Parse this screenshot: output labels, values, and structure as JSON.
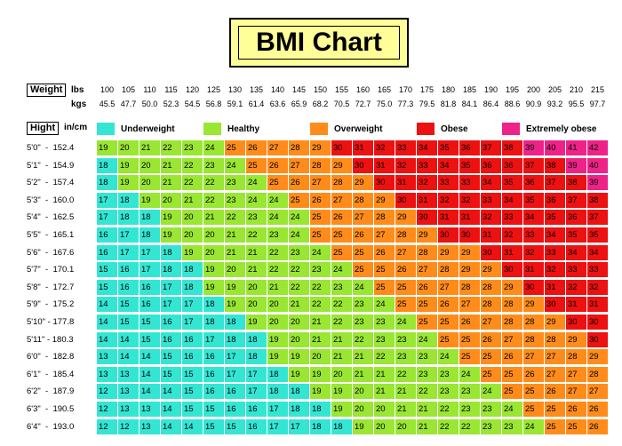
{
  "title": "BMI Chart",
  "header": {
    "weight_label": "Weight",
    "lbs_label": "lbs",
    "kgs_label": "kgs",
    "height_label": "Hight",
    "height_units": "in/cm"
  },
  "colors": {
    "underweight": "#33e6d4",
    "healthy": "#99e633",
    "overweight": "#ff8c1a",
    "obese": "#ee1111",
    "extremely_obese": "#ee2288"
  },
  "chart_data": {
    "type": "table",
    "title": "BMI Chart",
    "weights_lbs": [
      "100",
      "105",
      "110",
      "115",
      "120",
      "125",
      "130",
      "135",
      "140",
      "145",
      "150",
      "155",
      "160",
      "165",
      "170",
      "175",
      "180",
      "185",
      "190",
      "195",
      "200",
      "205",
      "210",
      "215"
    ],
    "weights_kgs": [
      "45.5",
      "47.7",
      "50.0",
      "52.3",
      "54.5",
      "56.8",
      "59.1",
      "61.4",
      "63.6",
      "65.9",
      "68.2",
      "70.5",
      "72.7",
      "75.0",
      "77.3",
      "79.5",
      "81.8",
      "84.1",
      "86.4",
      "88.6",
      "90.9",
      "93.2",
      "95.5",
      "97.7"
    ],
    "legend": [
      {
        "label": "Underweight",
        "key": "underweight",
        "max": 18
      },
      {
        "label": "Healthy",
        "key": "healthy",
        "max": 24
      },
      {
        "label": "Overweight",
        "key": "overweight",
        "max": 29
      },
      {
        "label": "Obese",
        "key": "obese",
        "max": 38
      },
      {
        "label": "Extremely obese",
        "key": "extremely_obese",
        "max": 999
      }
    ],
    "rows": [
      {
        "height": "5'0\"  -  152.4",
        "values": [
          19,
          20,
          21,
          22,
          23,
          24,
          25,
          26,
          27,
          28,
          29,
          30,
          31,
          32,
          33,
          34,
          35,
          36,
          37,
          38,
          39,
          40,
          41,
          42
        ]
      },
      {
        "height": "5'1\"  -  154.9",
        "values": [
          18,
          19,
          20,
          21,
          22,
          23,
          24,
          25,
          26,
          27,
          28,
          29,
          30,
          31,
          32,
          33,
          34,
          35,
          36,
          36,
          37,
          38,
          39,
          40
        ]
      },
      {
        "height": "5'2\"  -  157.4",
        "values": [
          18,
          19,
          20,
          21,
          22,
          22,
          23,
          24,
          25,
          26,
          27,
          28,
          29,
          30,
          31,
          32,
          33,
          33,
          34,
          35,
          36,
          37,
          38,
          39
        ]
      },
      {
        "height": "5'3\"  -  160.0",
        "values": [
          17,
          18,
          19,
          20,
          21,
          22,
          23,
          24,
          24,
          25,
          26,
          27,
          28,
          29,
          30,
          31,
          32,
          32,
          33,
          34,
          35,
          36,
          37,
          38
        ]
      },
      {
        "height": "5'4\"  -  162.5",
        "values": [
          17,
          18,
          18,
          19,
          20,
          21,
          22,
          23,
          24,
          24,
          25,
          26,
          27,
          28,
          29,
          30,
          31,
          31,
          32,
          33,
          34,
          35,
          36,
          37
        ]
      },
      {
        "height": "5'5\"  -  165.1",
        "values": [
          16,
          17,
          18,
          19,
          20,
          20,
          21,
          22,
          23,
          24,
          25,
          25,
          26,
          27,
          28,
          29,
          30,
          30,
          31,
          32,
          33,
          34,
          35,
          35
        ]
      },
      {
        "height": "5'6\"  -  167.6",
        "values": [
          16,
          17,
          17,
          18,
          19,
          20,
          21,
          21,
          22,
          23,
          24,
          25,
          25,
          26,
          27,
          28,
          29,
          29,
          30,
          31,
          32,
          33,
          34,
          34
        ]
      },
      {
        "height": "5'7\"  -  170.1",
        "values": [
          15,
          16,
          17,
          18,
          18,
          19,
          20,
          21,
          22,
          22,
          23,
          24,
          25,
          25,
          26,
          27,
          28,
          29,
          29,
          30,
          31,
          32,
          33,
          33
        ]
      },
      {
        "height": "5'8\"  -  172.7",
        "values": [
          15,
          16,
          16,
          17,
          18,
          19,
          19,
          20,
          21,
          22,
          22,
          23,
          24,
          25,
          25,
          26,
          27,
          28,
          28,
          29,
          30,
          31,
          32,
          32
        ]
      },
      {
        "height": "5'9\"  -  175.2",
        "values": [
          14,
          15,
          16,
          17,
          17,
          18,
          19,
          20,
          20,
          21,
          22,
          22,
          23,
          24,
          25,
          25,
          26,
          27,
          28,
          28,
          29,
          30,
          31,
          31
        ]
      },
      {
        "height": "5'10\" - 177.8",
        "values": [
          14,
          15,
          15,
          16,
          17,
          18,
          18,
          19,
          20,
          20,
          21,
          22,
          23,
          23,
          24,
          25,
          25,
          26,
          27,
          28,
          28,
          29,
          30,
          30
        ]
      },
      {
        "height": "5'11\" - 180.3",
        "values": [
          14,
          14,
          15,
          16,
          16,
          17,
          18,
          18,
          19,
          20,
          21,
          21,
          22,
          23,
          23,
          24,
          25,
          25,
          26,
          27,
          28,
          28,
          29,
          30
        ]
      },
      {
        "height": "6'0\"  -  182.8",
        "values": [
          13,
          14,
          14,
          15,
          16,
          16,
          17,
          18,
          19,
          19,
          20,
          21,
          21,
          22,
          23,
          23,
          24,
          25,
          25,
          26,
          27,
          27,
          28,
          29
        ]
      },
      {
        "height": "6'1\"  -  185.4",
        "values": [
          13,
          13,
          14,
          15,
          15,
          16,
          17,
          17,
          18,
          19,
          19,
          20,
          21,
          21,
          22,
          23,
          23,
          24,
          25,
          25,
          26,
          27,
          27,
          28
        ]
      },
      {
        "height": "6'2\"  -  187.9",
        "values": [
          12,
          13,
          14,
          14,
          15,
          16,
          16,
          17,
          18,
          18,
          19,
          19,
          20,
          21,
          21,
          22,
          23,
          23,
          24,
          25,
          25,
          26,
          27,
          27
        ]
      },
      {
        "height": "6'3\"  -  190.5",
        "values": [
          12,
          13,
          13,
          14,
          15,
          15,
          16,
          16,
          17,
          18,
          18,
          19,
          20,
          20,
          21,
          21,
          22,
          23,
          23,
          24,
          25,
          25,
          26,
          26
        ]
      },
      {
        "height": "6'4\"  -  193.0",
        "values": [
          12,
          12,
          13,
          14,
          14,
          15,
          15,
          16,
          17,
          17,
          18,
          18,
          19,
          20,
          20,
          21,
          22,
          22,
          23,
          23,
          24,
          25,
          25,
          26
        ]
      }
    ]
  }
}
